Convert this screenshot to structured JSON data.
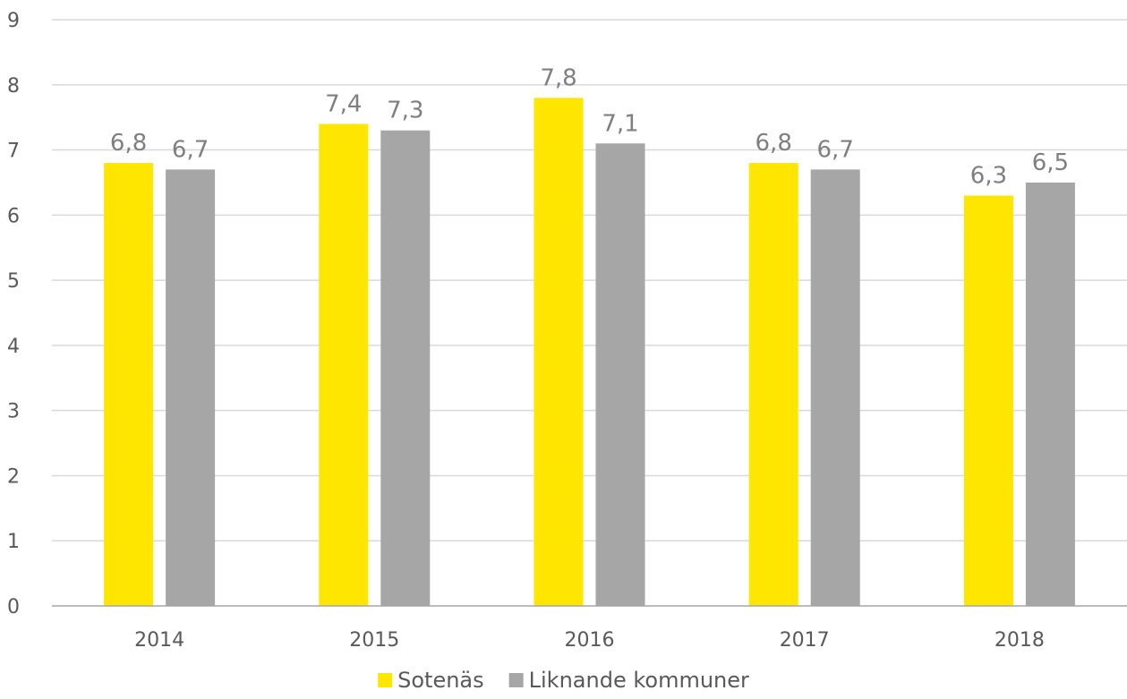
{
  "chart_data": {
    "type": "bar",
    "categories": [
      "2014",
      "2015",
      "2016",
      "2017",
      "2018"
    ],
    "series": [
      {
        "name": "Sotenäs",
        "color": "#ffe600",
        "values": [
          6.8,
          7.4,
          7.8,
          6.8,
          6.3
        ],
        "labels": [
          "6,8",
          "7,4",
          "7,8",
          "6,8",
          "6,3"
        ]
      },
      {
        "name": "Liknande kommuner",
        "color": "#a6a6a6",
        "values": [
          6.7,
          7.3,
          7.1,
          6.7,
          6.5
        ],
        "labels": [
          "6,7",
          "7,3",
          "7,1",
          "6,7",
          "6,5"
        ]
      }
    ],
    "ylim": [
      0,
      9
    ],
    "yticks": [
      "0",
      "1",
      "2",
      "3",
      "4",
      "5",
      "6",
      "7",
      "8",
      "9"
    ],
    "grid": true,
    "legend_position": "bottom-center",
    "title": "",
    "xlabel": "",
    "ylabel": ""
  }
}
